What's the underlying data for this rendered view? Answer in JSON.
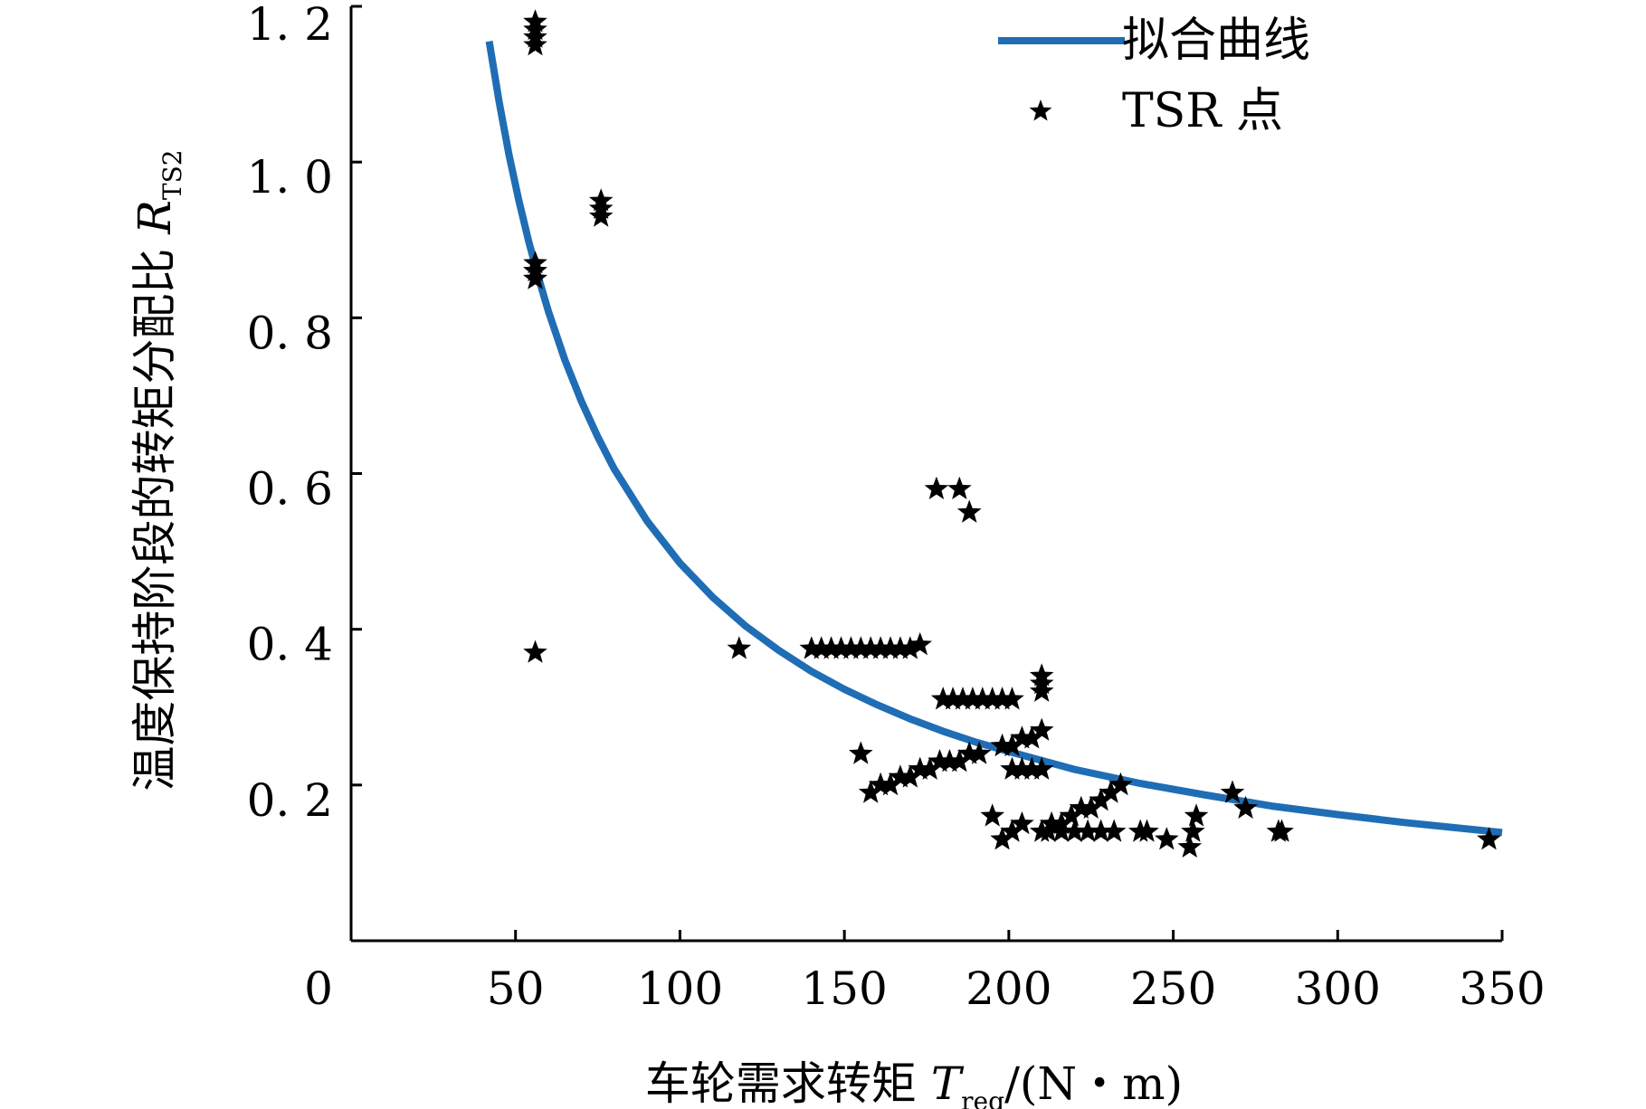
{
  "chart_data": {
    "type": "scatter",
    "xlabel": {
      "main": "车轮需求转矩 ",
      "var": "T",
      "sub": "req",
      "unit": "/(N・m)"
    },
    "ylabel": {
      "main": "温度保持阶段的转矩分配比 ",
      "var": "R",
      "sub": "TS2"
    },
    "xlim": [
      0,
      350
    ],
    "ylim": [
      0,
      1.2
    ],
    "x_ticks": [
      0,
      50,
      100,
      150,
      200,
      250,
      300,
      350
    ],
    "x_tick_labels": [
      "0",
      "50",
      "100",
      "150",
      "200",
      "250",
      "300",
      "350"
    ],
    "y_ticks": [
      0.2,
      0.4,
      0.6,
      0.8,
      1.0,
      1.2
    ],
    "y_tick_labels": [
      "0. 2",
      "0. 4",
      "0. 6",
      "0. 8",
      "1. 0",
      "1. 2"
    ],
    "legend": {
      "placement": "top-right",
      "entries": [
        {
          "label": "拟合曲线",
          "kind": "line"
        },
        {
          "label": "TSR 点",
          "kind": "star"
        }
      ]
    },
    "colors": {
      "curve": "#1f6db5",
      "points": "#000000"
    },
    "series": [
      {
        "name": "拟合曲线",
        "kind": "line",
        "function": "y = 48.5 / x",
        "x": [
          42,
          45,
          48,
          51,
          54,
          57,
          60,
          65,
          70,
          75,
          80,
          90,
          100,
          110,
          120,
          130,
          140,
          150,
          160,
          170,
          180,
          190,
          200,
          220,
          240,
          260,
          280,
          300,
          320,
          350
        ],
        "y": [
          1.155,
          1.078,
          1.01,
          0.951,
          0.898,
          0.851,
          0.808,
          0.746,
          0.693,
          0.647,
          0.606,
          0.539,
          0.485,
          0.441,
          0.404,
          0.373,
          0.346,
          0.323,
          0.303,
          0.285,
          0.269,
          0.255,
          0.243,
          0.22,
          0.202,
          0.187,
          0.173,
          0.162,
          0.152,
          0.139
        ]
      },
      {
        "name": "TSR 点",
        "kind": "star",
        "x": [
          56,
          56,
          56,
          56,
          56,
          56,
          56,
          56,
          56,
          56,
          76,
          76,
          76,
          118,
          140,
          143,
          146,
          149,
          152,
          155,
          158,
          161,
          164,
          167,
          170,
          173,
          178,
          185,
          188,
          180,
          183,
          186,
          189,
          192,
          195,
          198,
          201,
          210,
          210,
          210,
          155,
          158,
          161,
          164,
          167,
          170,
          173,
          176,
          179,
          182,
          185,
          188,
          191,
          198,
          201,
          204,
          207,
          210,
          201,
          204,
          207,
          210,
          195,
          198,
          201,
          204,
          210,
          213,
          216,
          219,
          222,
          225,
          228,
          231,
          234,
          212,
          216,
          220,
          224,
          228,
          232,
          240,
          242,
          248,
          255,
          256,
          257,
          268,
          272,
          282,
          283,
          346
        ],
        "y": [
          1.18,
          1.17,
          1.16,
          1.15,
          0.87,
          0.86,
          0.85,
          0.86,
          0.85,
          0.37,
          0.95,
          0.94,
          0.93,
          0.375,
          0.375,
          0.375,
          0.375,
          0.375,
          0.375,
          0.375,
          0.375,
          0.375,
          0.375,
          0.375,
          0.375,
          0.38,
          0.58,
          0.58,
          0.55,
          0.31,
          0.31,
          0.31,
          0.31,
          0.31,
          0.31,
          0.31,
          0.31,
          0.34,
          0.33,
          0.32,
          0.24,
          0.19,
          0.2,
          0.2,
          0.21,
          0.21,
          0.22,
          0.22,
          0.23,
          0.23,
          0.23,
          0.24,
          0.24,
          0.25,
          0.25,
          0.26,
          0.26,
          0.27,
          0.22,
          0.22,
          0.22,
          0.22,
          0.16,
          0.13,
          0.14,
          0.15,
          0.14,
          0.15,
          0.15,
          0.16,
          0.17,
          0.17,
          0.18,
          0.19,
          0.2,
          0.14,
          0.14,
          0.14,
          0.14,
          0.14,
          0.14,
          0.14,
          0.14,
          0.13,
          0.12,
          0.14,
          0.16,
          0.19,
          0.17,
          0.14,
          0.14,
          0.13
        ]
      }
    ]
  }
}
